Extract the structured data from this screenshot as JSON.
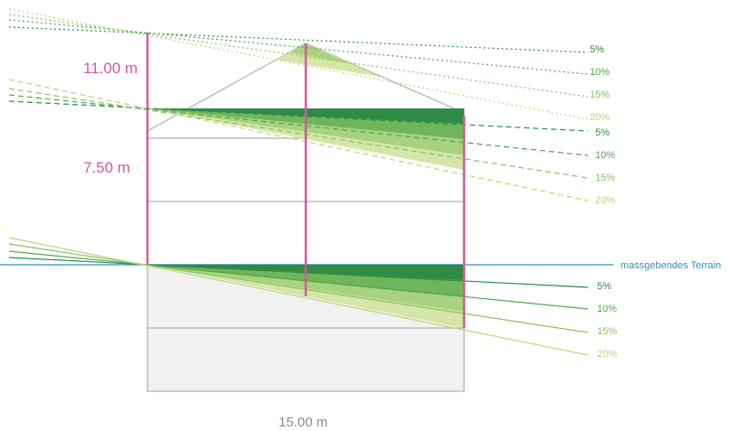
{
  "dimensions": {
    "height_total": "11.00 m",
    "height_eave": "7.50 m",
    "width": "15.00 m"
  },
  "terrain_label": "massgebendes Terrain",
  "roof_percent_labels": [
    "5%",
    "10%",
    "15%",
    "20%"
  ],
  "eave_percent_labels": [
    "5%",
    "10%",
    "15%",
    "20%"
  ],
  "terrain_percent_labels": [
    "5%",
    "10%",
    "15%",
    "20%"
  ],
  "colors": {
    "pink": "#d6589b",
    "terrain_blue": "#2b8fc4",
    "grey_line": "#bdbdbd",
    "basement_fill": "#f1f1f1",
    "slope_5": "#2e8b45",
    "slope_10": "#4fa54d",
    "slope_15": "#88c163",
    "slope_20": "#b9d77a"
  }
}
